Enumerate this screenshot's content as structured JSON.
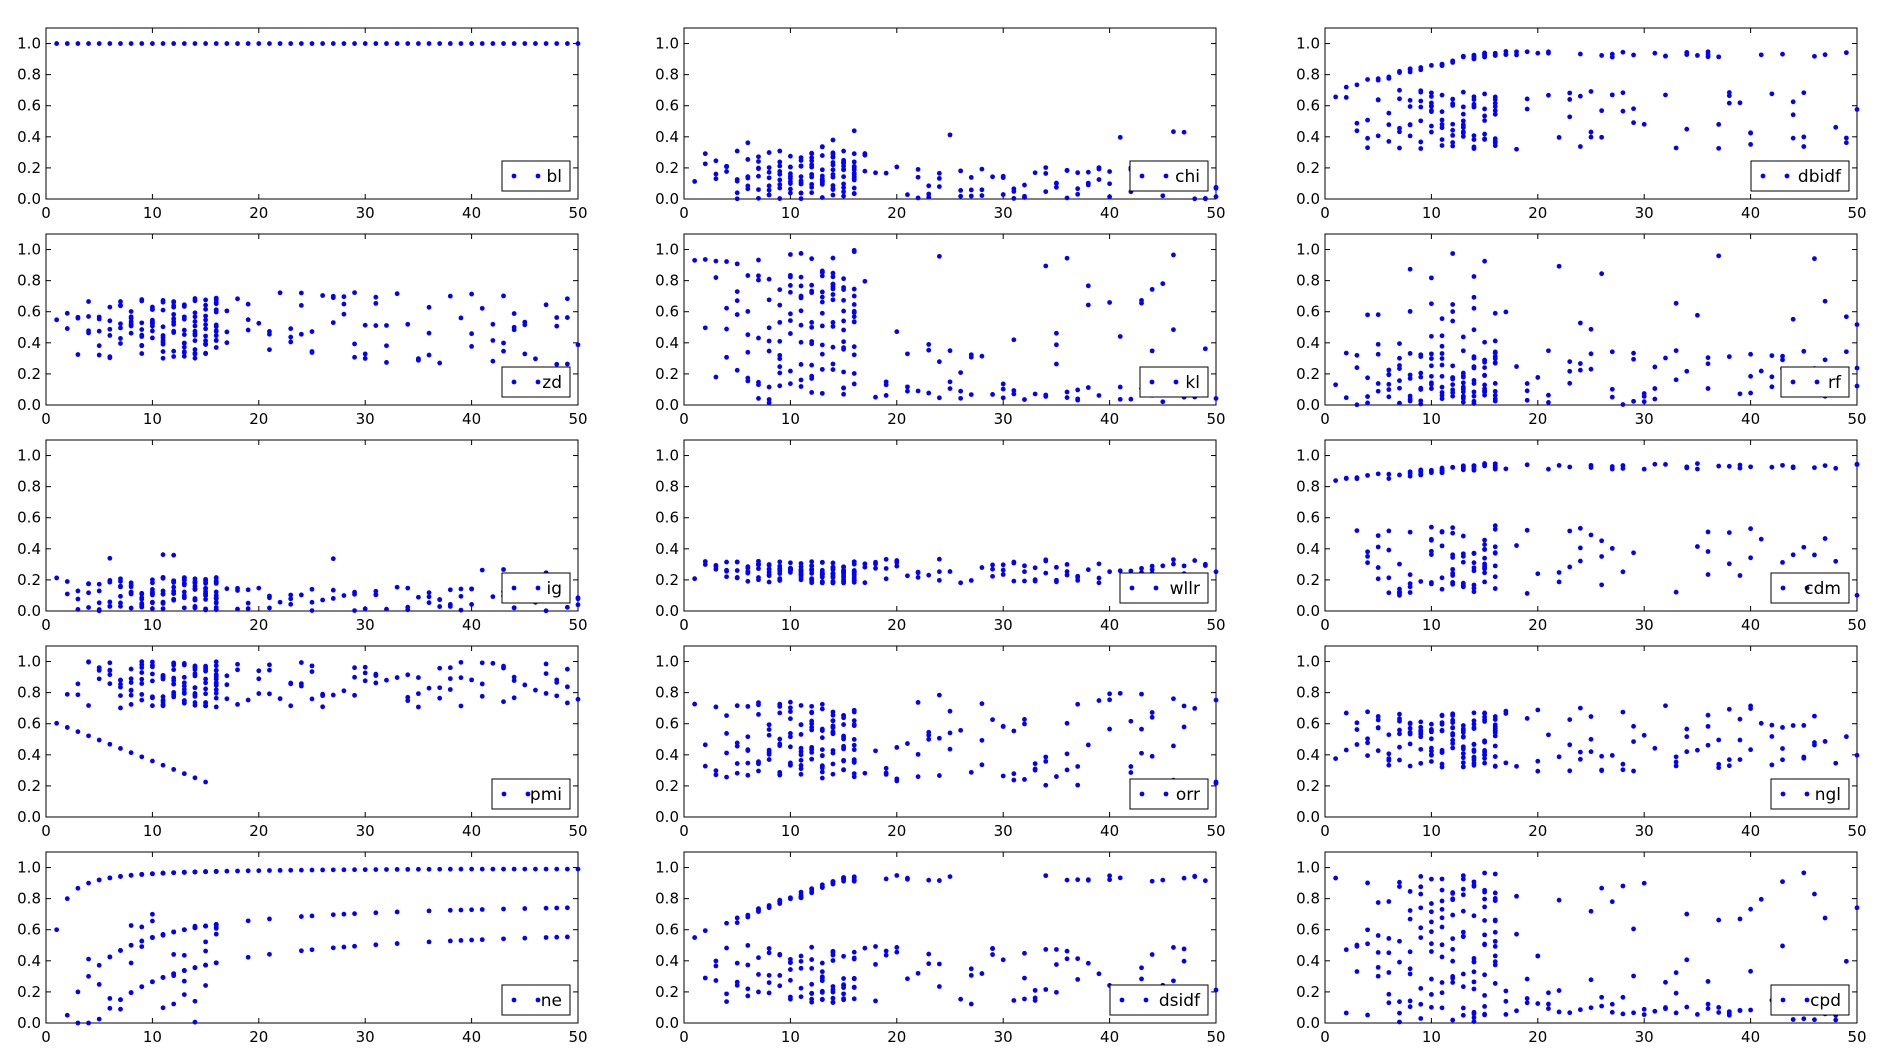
{
  "figure": {
    "layout": "5x3 grid of scatter subplots",
    "marker_color": "#0000ff",
    "xlim": [
      0,
      50
    ],
    "ylim": [
      0,
      1.1
    ],
    "xticks": [
      "0",
      "10",
      "20",
      "30",
      "40",
      "50"
    ],
    "yticks": [
      "0.0",
      "0.2",
      "0.4",
      "0.6",
      "0.8",
      "1.0"
    ]
  },
  "chart_data": [
    {
      "type": "scatter",
      "legend": "bl",
      "legend_position": "lower-right",
      "pattern": "constant",
      "value": 1.0
    },
    {
      "type": "scatter",
      "legend": "chi",
      "legend_position": "lower-right",
      "pattern": "lowcluster",
      "max": 0.3,
      "peak": 0.44
    },
    {
      "type": "scatter",
      "legend": "dbidf",
      "legend_position": "lower-right",
      "pattern": "twoband",
      "upper": [
        0.72,
        0.95
      ],
      "lower": [
        0.32,
        0.7
      ]
    },
    {
      "type": "scatter",
      "legend": "zd",
      "legend_position": "lower-right",
      "pattern": "band",
      "center": 0.5,
      "spread": 0.2
    },
    {
      "type": "scatter",
      "legend": "kl",
      "legend_position": "lower-right",
      "pattern": "fan",
      "top": 1.0
    },
    {
      "type": "scatter",
      "legend": "rf",
      "legend_position": "lower-right",
      "pattern": "fan_low",
      "top": 1.0
    },
    {
      "type": "scatter",
      "legend": "ig",
      "legend_position": "lower-right",
      "pattern": "lowcluster",
      "max": 0.22,
      "peak": 0.38
    },
    {
      "type": "scatter",
      "legend": "wllr",
      "legend_position": "lower-right",
      "pattern": "band",
      "center": 0.25,
      "spread": 0.07
    },
    {
      "type": "scatter",
      "legend": "cdm",
      "legend_position": "lower-right",
      "pattern": "twoband",
      "upper": [
        0.85,
        0.95
      ],
      "lower": [
        0.1,
        0.55
      ]
    },
    {
      "type": "scatter",
      "legend": "pmi",
      "legend_position": "lower-right",
      "pattern": "high",
      "center": 0.85,
      "spread": 0.15
    },
    {
      "type": "scatter",
      "legend": "orr",
      "legend_position": "lower-right",
      "pattern": "band",
      "center": 0.5,
      "spread": 0.25
    },
    {
      "type": "scatter",
      "legend": "ngl",
      "legend_position": "lower-right",
      "pattern": "band",
      "center": 0.5,
      "spread": 0.18
    },
    {
      "type": "scatter",
      "legend": "ne",
      "legend_position": "lower-right",
      "pattern": "curves",
      "top": 1.0
    },
    {
      "type": "scatter",
      "legend": "dsidf",
      "legend_position": "lower-right",
      "pattern": "twoband",
      "upper": [
        0.55,
        0.95
      ],
      "lower": [
        0.12,
        0.5
      ]
    },
    {
      "type": "scatter",
      "legend": "cpd",
      "legend_position": "lower-right",
      "pattern": "fan",
      "top": 1.0
    }
  ]
}
